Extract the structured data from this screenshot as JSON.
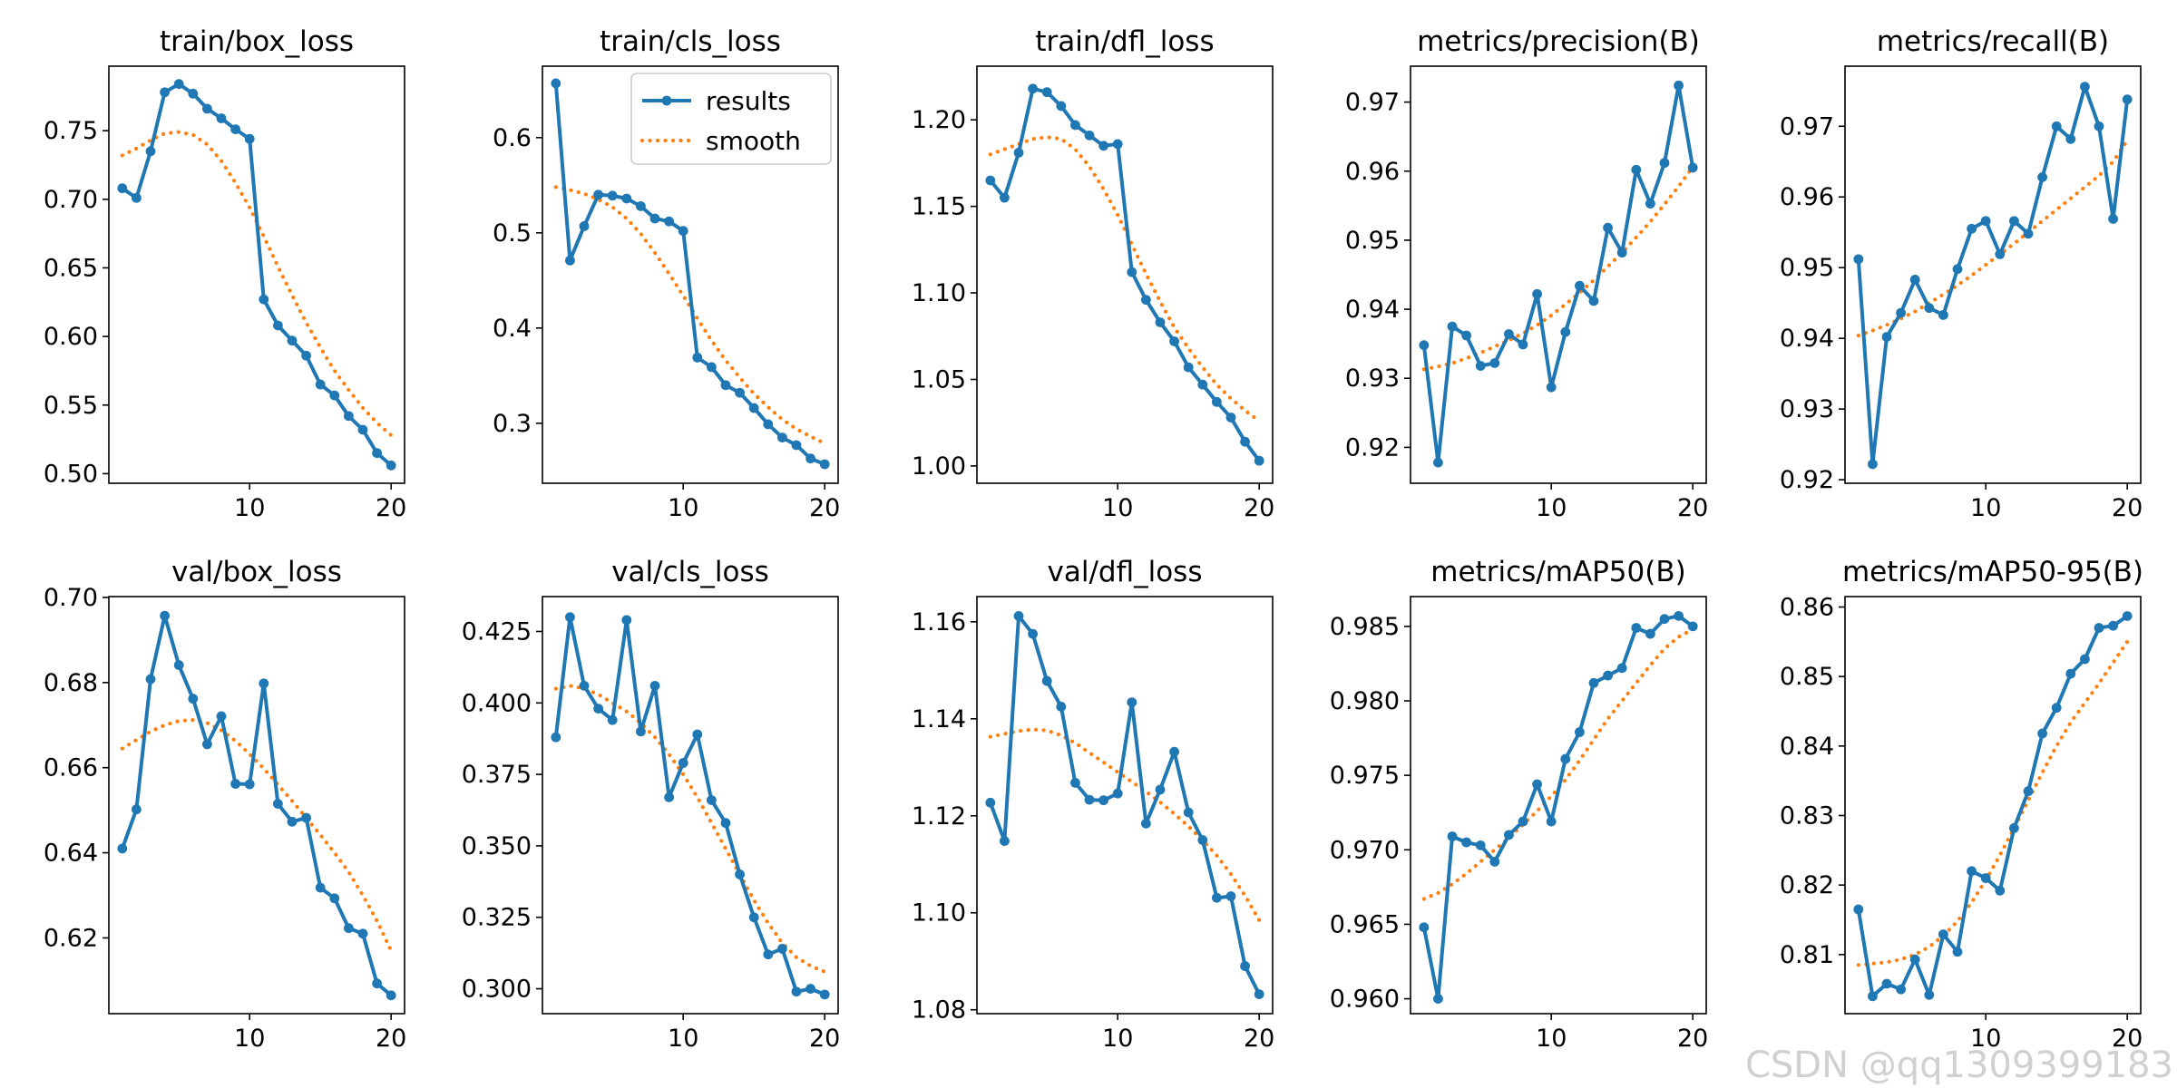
{
  "colors": {
    "results": "#1f77b4",
    "smooth": "#ff7f0e",
    "axes": "#000000"
  },
  "legend": {
    "results_label": "results",
    "smooth_label": "smooth",
    "location": "top-right",
    "subplot": "train/cls_loss"
  },
  "watermark": {
    "text": "CSDN @qq1309399183"
  },
  "chart_data": [
    {
      "type": "line",
      "title": "train/box_loss",
      "xlim": [
        0.05,
        20.95
      ],
      "ylim": [
        0.493,
        0.797
      ],
      "xticks": [
        10,
        20
      ],
      "yticks": [
        0.5,
        0.55,
        0.6,
        0.65,
        0.7,
        0.75
      ],
      "ytick_labels": [
        "0.50",
        "0.55",
        "0.60",
        "0.65",
        "0.70",
        "0.75"
      ],
      "x": [
        1,
        2,
        3,
        4,
        5,
        6,
        7,
        8,
        9,
        10,
        11,
        12,
        13,
        14,
        15,
        16,
        17,
        18,
        19,
        20
      ],
      "series": [
        {
          "name": "results",
          "values": [
            0.708,
            0.701,
            0.735,
            0.778,
            0.784,
            0.777,
            0.766,
            0.759,
            0.751,
            0.744,
            0.627,
            0.608,
            0.597,
            0.586,
            0.565,
            0.557,
            0.542,
            0.532,
            0.515,
            0.506
          ]
        },
        {
          "name": "smooth",
          "values": [
            0.732,
            0.737,
            0.743,
            0.748,
            0.749,
            0.747,
            0.74,
            0.728,
            0.712,
            0.694,
            0.673,
            0.651,
            0.63,
            0.61,
            0.592,
            0.575,
            0.561,
            0.548,
            0.537,
            0.528
          ]
        }
      ]
    },
    {
      "type": "line",
      "title": "train/cls_loss",
      "xlim": [
        0.05,
        20.95
      ],
      "ylim": [
        0.237,
        0.675
      ],
      "xticks": [
        10,
        20
      ],
      "yticks": [
        0.3,
        0.4,
        0.5,
        0.6
      ],
      "ytick_labels": [
        "0.3",
        "0.4",
        "0.5",
        "0.6"
      ],
      "x": [
        1,
        2,
        3,
        4,
        5,
        6,
        7,
        8,
        9,
        10,
        11,
        12,
        13,
        14,
        15,
        16,
        17,
        18,
        19,
        20
      ],
      "series": [
        {
          "name": "results",
          "values": [
            0.657,
            0.471,
            0.507,
            0.54,
            0.539,
            0.536,
            0.528,
            0.515,
            0.512,
            0.502,
            0.369,
            0.359,
            0.34,
            0.332,
            0.316,
            0.299,
            0.285,
            0.277,
            0.263,
            0.257
          ]
        },
        {
          "name": "smooth",
          "values": [
            0.548,
            0.545,
            0.541,
            0.535,
            0.527,
            0.515,
            0.499,
            0.479,
            0.457,
            0.434,
            0.41,
            0.387,
            0.366,
            0.348,
            0.331,
            0.317,
            0.304,
            0.294,
            0.286,
            0.279
          ]
        }
      ]
    },
    {
      "type": "line",
      "title": "train/dfl_loss",
      "xlim": [
        0.05,
        20.95
      ],
      "ylim": [
        0.99,
        1.231
      ],
      "xticks": [
        10,
        20
      ],
      "yticks": [
        1.0,
        1.05,
        1.1,
        1.15,
        1.2
      ],
      "ytick_labels": [
        "1.00",
        "1.05",
        "1.10",
        "1.15",
        "1.20"
      ],
      "x": [
        1,
        2,
        3,
        4,
        5,
        6,
        7,
        8,
        9,
        10,
        11,
        12,
        13,
        14,
        15,
        16,
        17,
        18,
        19,
        20
      ],
      "series": [
        {
          "name": "results",
          "values": [
            1.165,
            1.155,
            1.181,
            1.218,
            1.216,
            1.208,
            1.197,
            1.191,
            1.185,
            1.186,
            1.112,
            1.096,
            1.083,
            1.072,
            1.057,
            1.047,
            1.037,
            1.028,
            1.014,
            1.003
          ]
        },
        {
          "name": "smooth",
          "values": [
            1.18,
            1.183,
            1.186,
            1.189,
            1.19,
            1.189,
            1.183,
            1.173,
            1.16,
            1.145,
            1.128,
            1.111,
            1.095,
            1.08,
            1.068,
            1.057,
            1.047,
            1.039,
            1.032,
            1.026
          ]
        }
      ]
    },
    {
      "type": "line",
      "title": "metrics/precision(B)",
      "xlim": [
        0.05,
        20.95
      ],
      "ylim": [
        0.9148,
        0.9752
      ],
      "xticks": [
        10,
        20
      ],
      "yticks": [
        0.92,
        0.93,
        0.94,
        0.95,
        0.96,
        0.97
      ],
      "ytick_labels": [
        "0.92",
        "0.93",
        "0.94",
        "0.95",
        "0.96",
        "0.97"
      ],
      "x": [
        1,
        2,
        3,
        4,
        5,
        6,
        7,
        8,
        9,
        10,
        11,
        12,
        13,
        14,
        15,
        16,
        17,
        18,
        19,
        20
      ],
      "series": [
        {
          "name": "results",
          "values": [
            0.9348,
            0.9178,
            0.9375,
            0.9362,
            0.9318,
            0.9322,
            0.9364,
            0.9349,
            0.9422,
            0.9287,
            0.9367,
            0.9434,
            0.9412,
            0.9518,
            0.9482,
            0.9602,
            0.9553,
            0.9612,
            0.9724,
            0.9605
          ]
        },
        {
          "name": "smooth",
          "values": [
            0.9313,
            0.9317,
            0.9322,
            0.9329,
            0.9337,
            0.9346,
            0.9355,
            0.9365,
            0.9377,
            0.9391,
            0.9407,
            0.9424,
            0.9442,
            0.9462,
            0.9482,
            0.9504,
            0.9527,
            0.9552,
            0.9578,
            0.9606
          ]
        }
      ]
    },
    {
      "type": "line",
      "title": "metrics/recall(B)",
      "xlim": [
        0.05,
        20.95
      ],
      "ylim": [
        0.9195,
        0.9785
      ],
      "xticks": [
        10,
        20
      ],
      "yticks": [
        0.92,
        0.93,
        0.94,
        0.95,
        0.96,
        0.97
      ],
      "ytick_labels": [
        "0.92",
        "0.93",
        "0.94",
        "0.95",
        "0.96",
        "0.97"
      ],
      "x": [
        1,
        2,
        3,
        4,
        5,
        6,
        7,
        8,
        9,
        10,
        11,
        12,
        13,
        14,
        15,
        16,
        17,
        18,
        19,
        20
      ],
      "series": [
        {
          "name": "results",
          "values": [
            0.9512,
            0.9222,
            0.9402,
            0.9436,
            0.9483,
            0.9443,
            0.9433,
            0.9498,
            0.9555,
            0.9566,
            0.9519,
            0.9566,
            0.9548,
            0.9628,
            0.97,
            0.9682,
            0.9756,
            0.97,
            0.9569,
            0.9738
          ]
        },
        {
          "name": "smooth",
          "values": [
            0.9404,
            0.9411,
            0.9419,
            0.9428,
            0.9438,
            0.945,
            0.9462,
            0.9475,
            0.9489,
            0.9504,
            0.9519,
            0.9534,
            0.955,
            0.9566,
            0.9582,
            0.9598,
            0.9614,
            0.963,
            0.965,
            0.968
          ]
        }
      ]
    },
    {
      "type": "line",
      "title": "val/box_loss",
      "xlim": [
        0.05,
        20.95
      ],
      "ylim": [
        0.6022,
        0.7002
      ],
      "xticks": [
        10,
        20
      ],
      "yticks": [
        0.62,
        0.64,
        0.66,
        0.68,
        0.7
      ],
      "ytick_labels": [
        "0.62",
        "0.64",
        "0.66",
        "0.68",
        "0.70"
      ],
      "x": [
        1,
        2,
        3,
        4,
        5,
        6,
        7,
        8,
        9,
        10,
        11,
        12,
        13,
        14,
        15,
        16,
        17,
        18,
        19,
        20
      ],
      "series": [
        {
          "name": "results",
          "values": [
            0.641,
            0.6502,
            0.6808,
            0.6957,
            0.6841,
            0.6762,
            0.6655,
            0.6721,
            0.6562,
            0.6561,
            0.6798,
            0.6515,
            0.6473,
            0.6482,
            0.6318,
            0.6293,
            0.6223,
            0.621,
            0.6093,
            0.6065
          ]
        },
        {
          "name": "smooth",
          "values": [
            0.6645,
            0.6665,
            0.6685,
            0.67,
            0.671,
            0.6712,
            0.6705,
            0.6688,
            0.6663,
            0.6632,
            0.6598,
            0.656,
            0.6522,
            0.6482,
            0.6442,
            0.64,
            0.6355,
            0.63,
            0.624,
            0.617
          ]
        }
      ]
    },
    {
      "type": "line",
      "title": "val/cls_loss",
      "xlim": [
        0.05,
        20.95
      ],
      "ylim": [
        0.2913,
        0.4372
      ],
      "xticks": [
        10,
        20
      ],
      "yticks": [
        0.3,
        0.325,
        0.35,
        0.375,
        0.4,
        0.425
      ],
      "ytick_labels": [
        "0.300",
        "0.325",
        "0.350",
        "0.375",
        "0.400",
        "0.425"
      ],
      "x": [
        1,
        2,
        3,
        4,
        5,
        6,
        7,
        8,
        9,
        10,
        11,
        12,
        13,
        14,
        15,
        16,
        17,
        18,
        19,
        20
      ],
      "series": [
        {
          "name": "results",
          "values": [
            0.388,
            0.43,
            0.406,
            0.398,
            0.394,
            0.429,
            0.39,
            0.406,
            0.367,
            0.379,
            0.389,
            0.366,
            0.358,
            0.34,
            0.325,
            0.312,
            0.314,
            0.299,
            0.3,
            0.298
          ]
        },
        {
          "name": "smooth",
          "values": [
            0.405,
            0.406,
            0.405,
            0.403,
            0.4,
            0.397,
            0.393,
            0.388,
            0.382,
            0.375,
            0.367,
            0.358,
            0.349,
            0.34,
            0.331,
            0.323,
            0.316,
            0.311,
            0.308,
            0.306
          ]
        }
      ]
    },
    {
      "type": "line",
      "title": "val/dfl_loss",
      "xlim": [
        0.05,
        20.95
      ],
      "ylim": [
        1.0792,
        1.1652
      ],
      "xticks": [
        10,
        20
      ],
      "yticks": [
        1.08,
        1.1,
        1.12,
        1.14,
        1.16
      ],
      "ytick_labels": [
        "1.08",
        "1.10",
        "1.12",
        "1.14",
        "1.16"
      ],
      "x": [
        1,
        2,
        3,
        4,
        5,
        6,
        7,
        8,
        9,
        10,
        11,
        12,
        13,
        14,
        15,
        16,
        17,
        18,
        19,
        20
      ],
      "series": [
        {
          "name": "results",
          "values": [
            1.1227,
            1.1148,
            1.1612,
            1.1575,
            1.1478,
            1.1425,
            1.1268,
            1.1233,
            1.1232,
            1.1246,
            1.1434,
            1.1184,
            1.1254,
            1.1332,
            1.1207,
            1.115,
            1.1031,
            1.1034,
            1.089,
            1.0832
          ]
        },
        {
          "name": "smooth",
          "values": [
            1.1363,
            1.1369,
            1.1375,
            1.1378,
            1.1376,
            1.1366,
            1.135,
            1.133,
            1.131,
            1.129,
            1.127,
            1.125,
            1.1228,
            1.1204,
            1.1178,
            1.115,
            1.1118,
            1.108,
            1.1035,
            1.0985
          ]
        }
      ]
    },
    {
      "type": "line",
      "title": "metrics/mAP50(B)",
      "xlim": [
        0.05,
        20.95
      ],
      "ylim": [
        0.959,
        0.987
      ],
      "xticks": [
        10,
        20
      ],
      "yticks": [
        0.96,
        0.965,
        0.97,
        0.975,
        0.98,
        0.985
      ],
      "ytick_labels": [
        "0.960",
        "0.965",
        "0.970",
        "0.975",
        "0.980",
        "0.985"
      ],
      "x": [
        1,
        2,
        3,
        4,
        5,
        6,
        7,
        8,
        9,
        10,
        11,
        12,
        13,
        14,
        15,
        16,
        17,
        18,
        19,
        20
      ],
      "series": [
        {
          "name": "results",
          "values": [
            0.9648,
            0.96,
            0.9709,
            0.9705,
            0.9703,
            0.9692,
            0.971,
            0.9719,
            0.9744,
            0.9719,
            0.9761,
            0.9779,
            0.9812,
            0.9817,
            0.9822,
            0.9849,
            0.9845,
            0.9855,
            0.9857,
            0.985
          ]
        },
        {
          "name": "smooth",
          "values": [
            0.9667,
            0.9671,
            0.9677,
            0.9684,
            0.9692,
            0.97,
            0.9708,
            0.9717,
            0.9726,
            0.9736,
            0.9747,
            0.976,
            0.9774,
            0.9788,
            0.98,
            0.9812,
            0.9824,
            0.9835,
            0.9843,
            0.9848
          ]
        }
      ]
    },
    {
      "type": "line",
      "title": "metrics/mAP50-95(B)",
      "xlim": [
        0.05,
        20.95
      ],
      "ylim": [
        0.8015,
        0.8615
      ],
      "xticks": [
        10,
        20
      ],
      "yticks": [
        0.81,
        0.82,
        0.83,
        0.84,
        0.85,
        0.86
      ],
      "ytick_labels": [
        "0.81",
        "0.82",
        "0.83",
        "0.84",
        "0.85",
        "0.86"
      ],
      "x": [
        1,
        2,
        3,
        4,
        5,
        6,
        7,
        8,
        9,
        10,
        11,
        12,
        13,
        14,
        15,
        16,
        17,
        18,
        19,
        20
      ],
      "series": [
        {
          "name": "results",
          "values": [
            0.8165,
            0.804,
            0.8058,
            0.805,
            0.8093,
            0.8042,
            0.8129,
            0.8104,
            0.822,
            0.821,
            0.8192,
            0.8282,
            0.8335,
            0.8418,
            0.8455,
            0.8504,
            0.8525,
            0.857,
            0.8573,
            0.8587
          ]
        },
        {
          "name": "smooth",
          "values": [
            0.8085,
            0.8087,
            0.8089,
            0.8093,
            0.81,
            0.8111,
            0.8127,
            0.8148,
            0.8175,
            0.8207,
            0.8243,
            0.8282,
            0.8322,
            0.8362,
            0.84,
            0.8434,
            0.8462,
            0.849,
            0.852,
            0.855
          ]
        }
      ]
    }
  ]
}
